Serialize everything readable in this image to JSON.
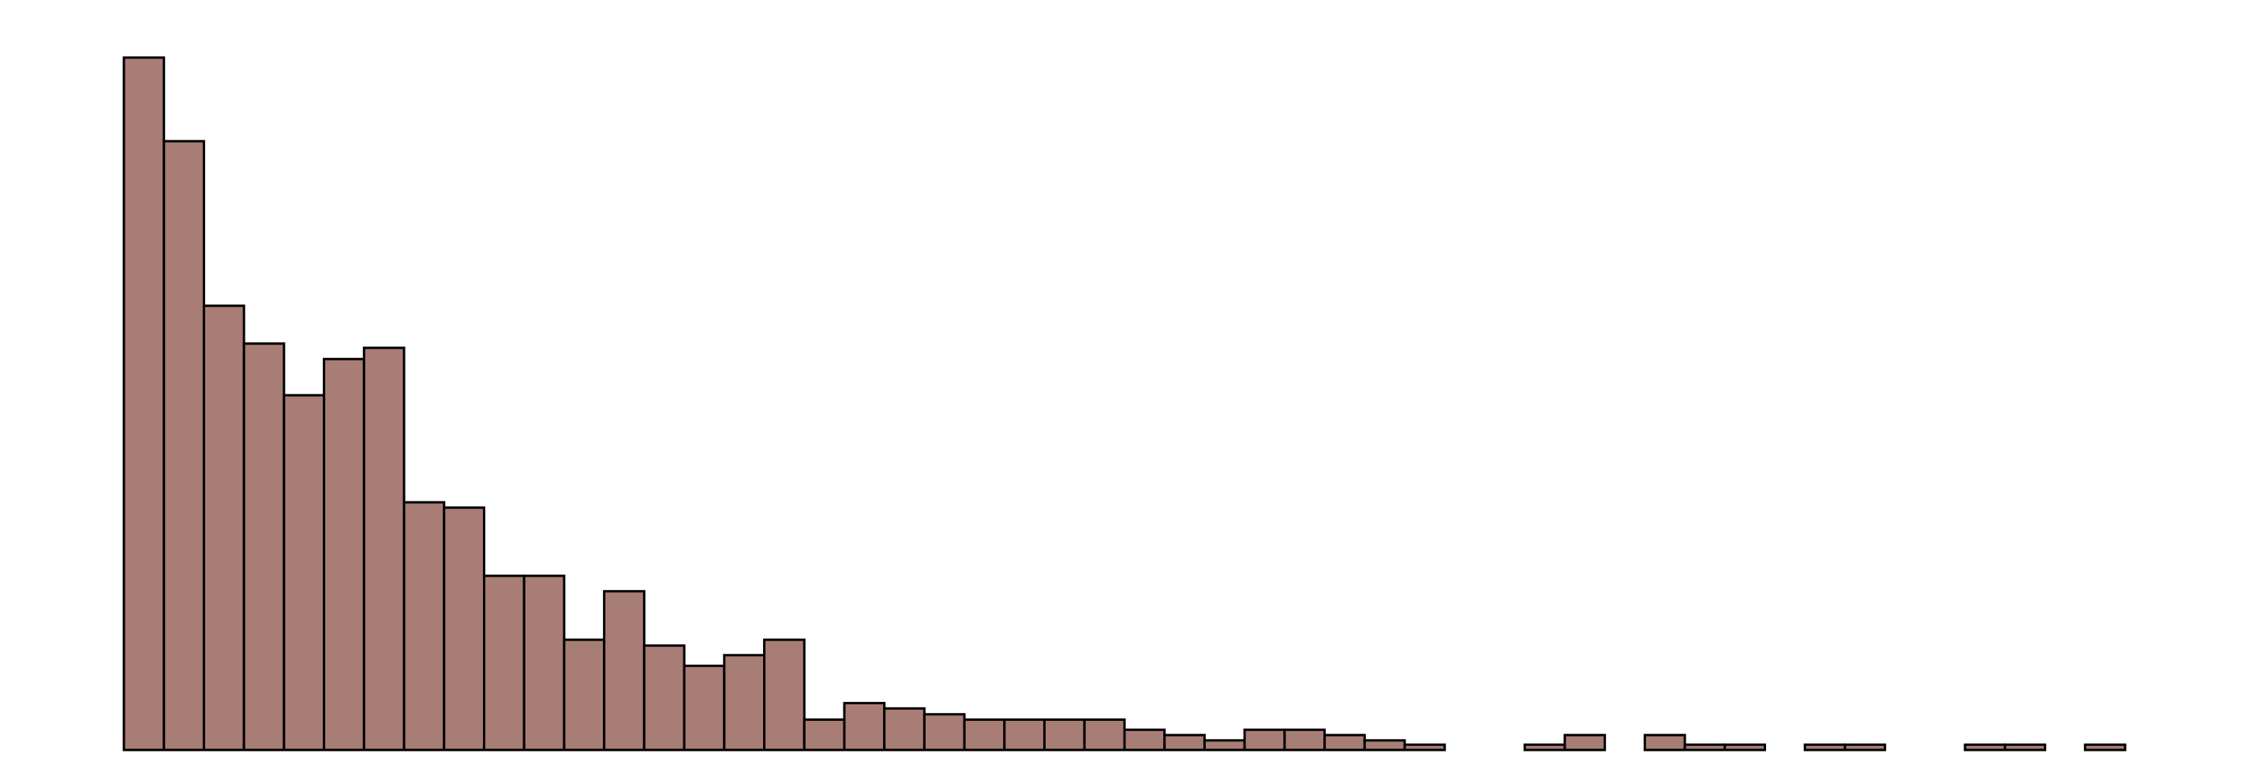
{
  "chart_data": {
    "type": "bar",
    "title": "",
    "xlabel": "",
    "ylabel": "",
    "grid": false,
    "legend": "none",
    "axes_visible": false,
    "ylim": [
      0,
      130
    ],
    "bar_color": "#a77d76",
    "edge_color": "#000000",
    "values": [
      130,
      114.3,
      83.4,
      76.3,
      66.6,
      73.4,
      75.5,
      46.5,
      45.5,
      32.7,
      32.7,
      20.7,
      29.8,
      19.6,
      15.8,
      17.8,
      20.7,
      5.7,
      8.8,
      7.8,
      6.7,
      5.7,
      5.7,
      5.7,
      5.7,
      3.8,
      2.8,
      1.8,
      3.8,
      3.8,
      2.8,
      1.8,
      1,
      0,
      0,
      1,
      2.8,
      0,
      2.8,
      1,
      1,
      0,
      1,
      1,
      0,
      0,
      1,
      1,
      0,
      1
    ]
  }
}
